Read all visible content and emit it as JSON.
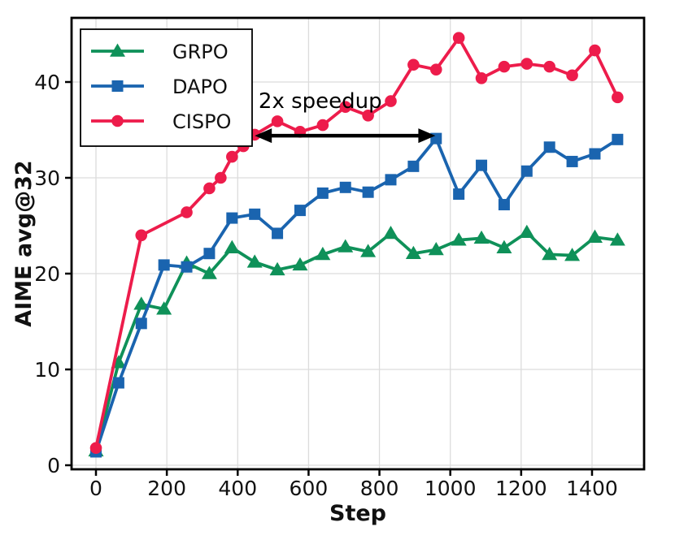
{
  "figure": {
    "background": "#ffffff"
  },
  "chart_data": {
    "type": "line",
    "title": "",
    "xlabel": "Step",
    "ylabel": "AIME avg@32",
    "xlim": [
      -70,
      1548
    ],
    "ylim": [
      -0.45,
      46.7
    ],
    "xticks": [
      0,
      200,
      400,
      600,
      800,
      1000,
      1200,
      1400
    ],
    "yticks": [
      0,
      10,
      20,
      30,
      40
    ],
    "grid": true,
    "grid_color": "#dcdcdc",
    "legend_position": "upper-left",
    "series": [
      {
        "name": "GRPO",
        "color": "#0F9159",
        "marker": "triangle",
        "steps": [
          0,
          64,
          128,
          192,
          256,
          320,
          384,
          448,
          512,
          576,
          640,
          704,
          768,
          832,
          896,
          960,
          1024,
          1088,
          1152,
          1216,
          1280,
          1344,
          1408,
          1472
        ],
        "values": [
          1.5,
          10.7,
          16.8,
          16.3,
          21.1,
          20.0,
          22.7,
          21.2,
          20.4,
          20.9,
          22.0,
          22.8,
          22.3,
          24.2,
          22.1,
          22.5,
          23.5,
          23.7,
          22.7,
          24.3,
          22.0,
          21.9,
          23.8,
          23.5
        ]
      },
      {
        "name": "DAPO",
        "color": "#1A64AF",
        "marker": "square",
        "steps": [
          0,
          64,
          128,
          192,
          256,
          320,
          384,
          448,
          512,
          576,
          640,
          704,
          768,
          832,
          896,
          960,
          1024,
          1088,
          1152,
          1216,
          1280,
          1344,
          1408,
          1472
        ],
        "values": [
          1.4,
          8.6,
          14.8,
          20.9,
          20.7,
          22.1,
          25.8,
          26.2,
          24.2,
          26.6,
          28.4,
          29.0,
          28.5,
          29.8,
          31.2,
          34.1,
          28.3,
          31.3,
          27.2,
          30.7,
          33.2,
          31.7,
          32.5,
          34.0
        ]
      },
      {
        "name": "CISPO",
        "color": "#ED1C4B",
        "marker": "circle",
        "steps": [
          0,
          128,
          256,
          320,
          352,
          384,
          416,
          448,
          512,
          576,
          640,
          704,
          768,
          832,
          896,
          960,
          1024,
          1088,
          1152,
          1216,
          1280,
          1344,
          1408,
          1472
        ],
        "values": [
          1.8,
          24.0,
          26.4,
          28.9,
          30.0,
          32.2,
          33.3,
          34.5,
          35.9,
          34.8,
          35.5,
          37.4,
          36.5,
          38.0,
          41.8,
          41.3,
          44.6,
          40.4,
          41.6,
          41.9,
          41.6,
          40.7,
          43.3,
          38.4
        ]
      }
    ],
    "annotation": {
      "text": "2x speedup",
      "arrow_from_step": 448,
      "arrow_to_step": 958,
      "arrow_y": 34.4,
      "text_step": 633,
      "text_baseline_y": 37.3,
      "color": "#000000"
    }
  }
}
